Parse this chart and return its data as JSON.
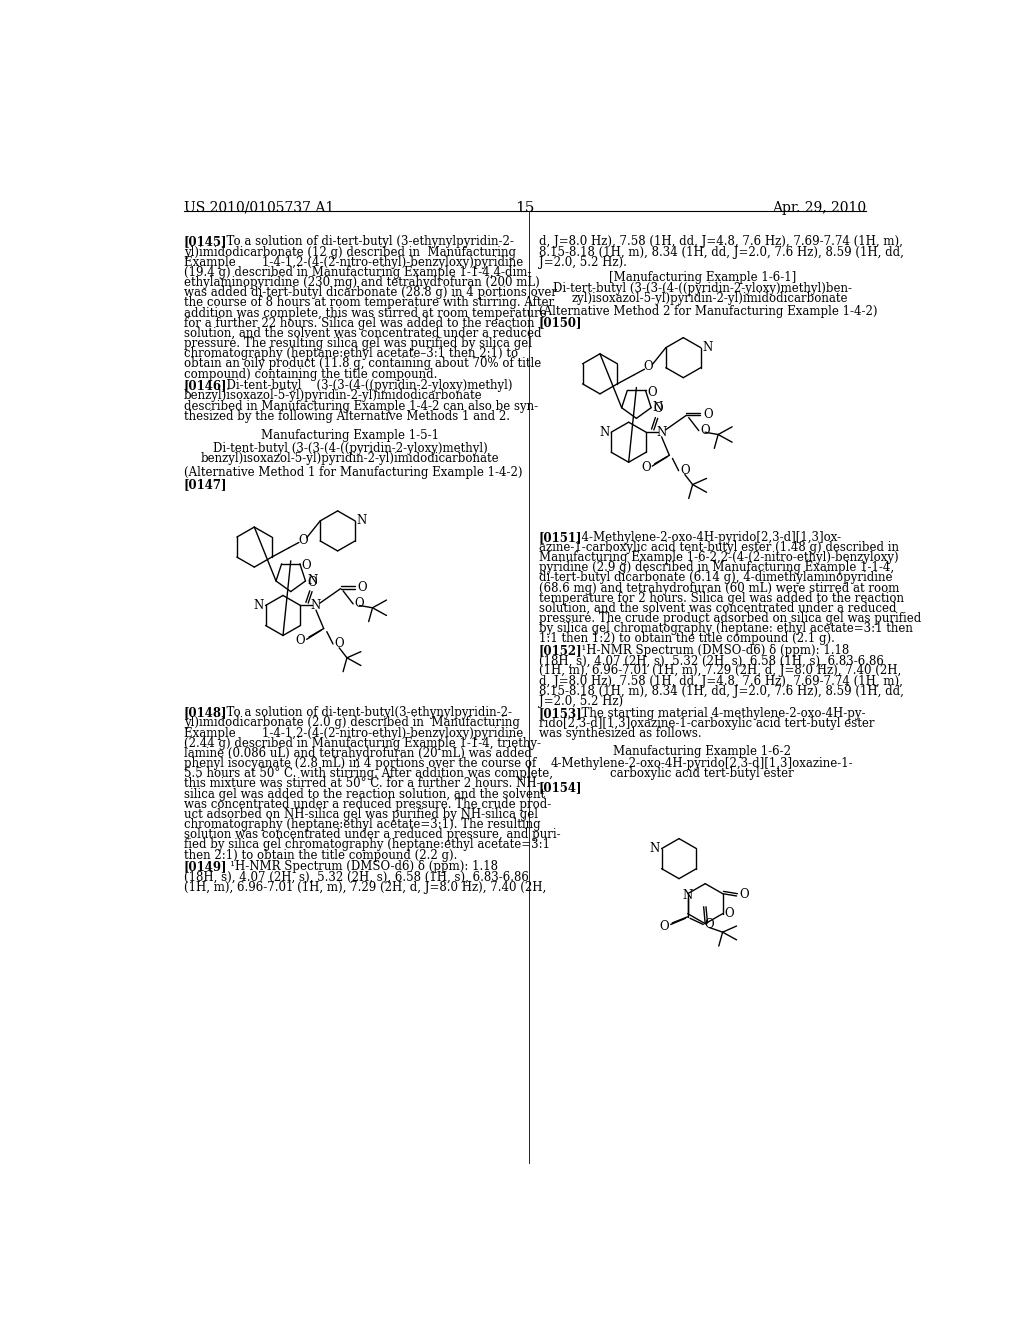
{
  "background_color": "#ffffff",
  "page_number": "15",
  "header_left": "US 2010/0105737 A1",
  "header_right": "Apr. 29, 2010",
  "fs": 8.5,
  "ld": 13.2
}
